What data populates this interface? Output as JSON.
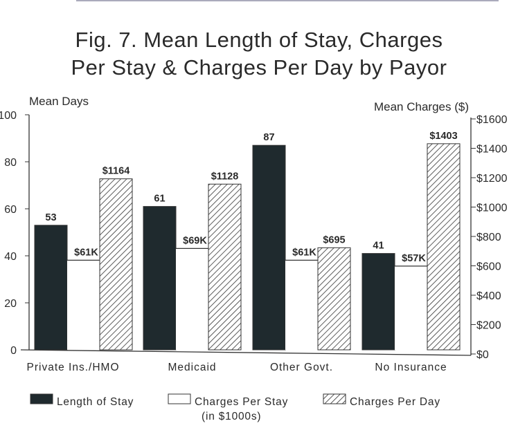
{
  "chart_data": {
    "type": "bar",
    "title": "Fig. 7.  Mean Length of Stay, Charges Per Stay & Charges Per Day by Payor",
    "title_lines": [
      "Fig. 7.  Mean Length of Stay, Charges",
      "Per Stay & Charges Per Day by Payor"
    ],
    "ylabel_left": "Mean Days",
    "ylabel_right": "Mean Charges ($)",
    "ylim_left": [
      0,
      100
    ],
    "ylim_right": [
      0,
      1600
    ],
    "yticks_left": [
      "0",
      "20",
      "40",
      "60",
      "80",
      "100"
    ],
    "yticks_right": [
      "$0",
      "$200",
      "$400",
      "$600",
      "$800",
      "$1000",
      "$1200",
      "$1400",
      "$1600"
    ],
    "categories": [
      "Private Ins./HMO",
      "Medicaid",
      "Other Govt.",
      "No Insurance"
    ],
    "series": [
      {
        "name": "Length of Stay",
        "axis": "left",
        "values": [
          53,
          61,
          87,
          41
        ],
        "labels": [
          "53",
          "61",
          "87",
          "41"
        ],
        "fill": "dark"
      },
      {
        "name": "Charges Per Stay",
        "name_note": "(in $1000s)",
        "axis": "right",
        "unit": "thousands of $",
        "values": [
          61,
          69,
          61,
          57
        ],
        "labels": [
          "$61K",
          "$69K",
          "$61K",
          "$57K"
        ],
        "fill": "white"
      },
      {
        "name": "Charges Per Day",
        "axis": "right",
        "values": [
          1164,
          1128,
          695,
          1403
        ],
        "labels": [
          "$1164",
          "$1128",
          "$695",
          "$1403"
        ],
        "fill": "hatched"
      }
    ],
    "legend_placement": "bottom",
    "grid": false,
    "colors": {
      "dark": "#1f2a2e",
      "ink": "#2a2a2a"
    }
  }
}
